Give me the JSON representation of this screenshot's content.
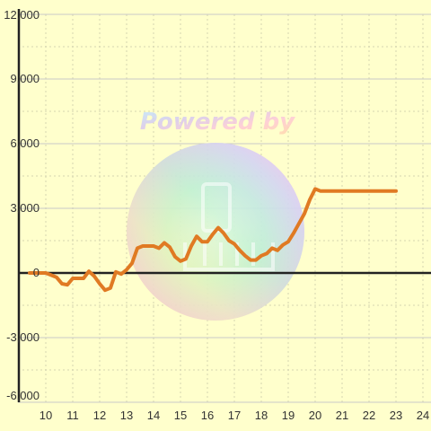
{
  "watermark": {
    "text": "Powered by"
  },
  "colors": {
    "background": "#ffffcc",
    "line": "#e07a23",
    "grid_major": "#c8c8c8",
    "grid_minor": "#d4d4b0",
    "axis": "#222222",
    "text": "#333333"
  },
  "chart_data": {
    "type": "line",
    "title": "",
    "xlabel": "",
    "ylabel": "",
    "xlim": [
      9.4,
      24.3
    ],
    "ylim": [
      -6000,
      12000
    ],
    "grid": true,
    "x_ticks": [
      "10",
      "11",
      "12",
      "13",
      "14",
      "15",
      "16",
      "17",
      "18",
      "19",
      "20",
      "21",
      "22",
      "23",
      "24"
    ],
    "y_ticks": [
      "12,000",
      "9,000",
      "6,000",
      "3,000",
      "0",
      "-3,000",
      "-6,000"
    ],
    "series": [
      {
        "x": [
          9.4,
          9.7,
          10.0,
          10.2,
          10.4,
          10.6,
          10.8,
          11.0,
          11.2,
          11.4,
          11.6,
          11.8,
          12.0,
          12.2,
          12.4,
          12.6,
          12.8,
          13.0,
          13.2,
          13.4,
          13.6,
          13.8,
          14.0,
          14.2,
          14.4,
          14.6,
          14.8,
          15.0,
          15.2,
          15.4,
          15.6,
          15.8,
          16.0,
          16.2,
          16.4,
          16.6,
          16.8,
          17.0,
          17.2,
          17.4,
          17.6,
          17.8,
          18.0,
          18.2,
          18.4,
          18.6,
          18.8,
          19.0,
          19.2,
          19.4,
          19.6,
          19.8,
          20.0,
          20.2,
          20.4,
          20.6,
          20.8,
          21.0,
          21.2,
          21.4,
          21.6,
          21.8,
          22.0,
          22.2,
          22.4,
          22.6,
          22.8,
          23.0
        ],
        "y": [
          0,
          0,
          0,
          -100,
          -200,
          -500,
          -550,
          -250,
          -250,
          -250,
          80,
          -150,
          -500,
          -800,
          -700,
          50,
          -50,
          150,
          450,
          1150,
          1250,
          1250,
          1250,
          1150,
          1400,
          1200,
          750,
          550,
          650,
          1250,
          1700,
          1450,
          1450,
          1800,
          2100,
          1850,
          1500,
          1350,
          1050,
          800,
          600,
          600,
          800,
          900,
          1150,
          1050,
          1300,
          1450,
          1850,
          2300,
          2750,
          3400,
          3900,
          3800,
          3800,
          3800,
          3800,
          3800,
          3800,
          3800,
          3800,
          3800,
          3800,
          3800,
          3800,
          3800,
          3800,
          3800
        ]
      }
    ]
  }
}
